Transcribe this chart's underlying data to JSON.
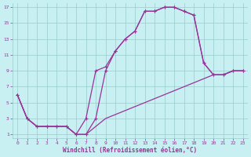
{
  "bg_color": "#c8eff2",
  "grid_color": "#99cccc",
  "line_color": "#993399",
  "xlabel": "Windchill (Refroidissement éolien,°C)",
  "xlim": [
    -0.5,
    23.5
  ],
  "ylim": [
    0.5,
    17.5
  ],
  "xticks": [
    0,
    1,
    2,
    3,
    4,
    5,
    6,
    7,
    8,
    9,
    10,
    11,
    12,
    13,
    14,
    15,
    16,
    17,
    18,
    19,
    20,
    21,
    22,
    23
  ],
  "yticks": [
    1,
    3,
    5,
    7,
    9,
    11,
    13,
    15,
    17
  ],
  "curve_arch_x": [
    0,
    1,
    2,
    3,
    4,
    5,
    6,
    7,
    8,
    9,
    10,
    11,
    12,
    13,
    14,
    15,
    16,
    17,
    18,
    19,
    20,
    21,
    22,
    23
  ],
  "curve_arch_y": [
    6,
    3,
    2,
    2,
    2,
    2,
    1,
    1,
    3,
    9,
    11.5,
    13,
    14,
    16.5,
    16.5,
    17,
    17,
    16.5,
    16,
    10,
    8.5,
    8.5,
    9,
    9
  ],
  "curve_mid_x": [
    0,
    1,
    2,
    3,
    4,
    5,
    6,
    7,
    8,
    9,
    10,
    11,
    12,
    13,
    14,
    15,
    16,
    17,
    18,
    19,
    20,
    21,
    22,
    23
  ],
  "curve_mid_y": [
    6,
    3,
    2,
    2,
    2,
    2,
    1,
    3,
    9,
    9.5,
    11.5,
    13,
    14,
    16.5,
    16.5,
    17,
    17,
    16.5,
    16,
    10,
    8.5,
    8.5,
    9,
    9
  ],
  "curve_diag_x": [
    0,
    1,
    2,
    3,
    4,
    5,
    6,
    7,
    8,
    9,
    10,
    11,
    12,
    13,
    14,
    15,
    16,
    17,
    18,
    19,
    20,
    21,
    22,
    23
  ],
  "curve_diag_y": [
    6,
    3,
    2,
    2,
    2,
    2,
    1,
    1,
    2,
    3,
    3.5,
    4,
    4.5,
    5,
    5.5,
    6,
    6.5,
    7,
    7.5,
    8,
    8.5,
    8.5,
    9,
    9
  ]
}
